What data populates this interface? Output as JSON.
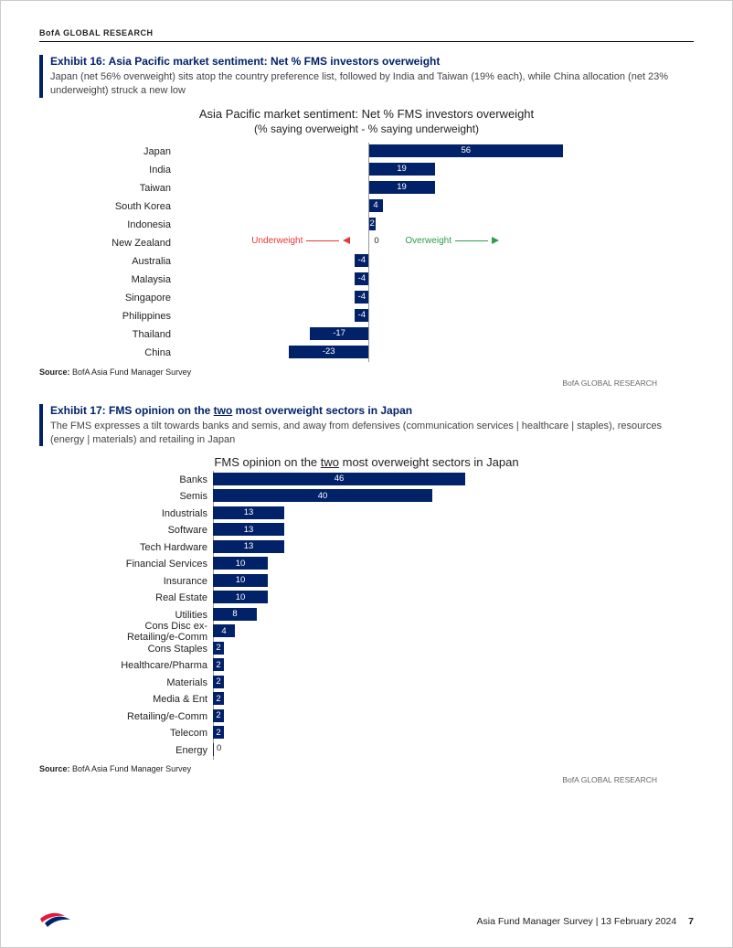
{
  "header": "BofA GLOBAL RESEARCH",
  "attrib": "BofA GLOBAL RESEARCH",
  "source_label": "Source:",
  "source_text": "BofA Asia Fund Manager Survey",
  "exhibit16": {
    "title": "Exhibit 16: Asia Pacific market sentiment: Net % FMS investors overweight",
    "sub": "Japan (net 56% overweight) sits atop the country preference list, followed by India and Taiwan (19% each), while China allocation (net 23% underweight) struck a new low",
    "chart_title": "Asia Pacific market sentiment: Net % FMS investors overweight",
    "chart_subtitle": "(% saying overweight - % saying underweight)",
    "type": "bar-diverging",
    "bar_color": "#012169",
    "axis_color": "#999999",
    "text_color": "#222222",
    "label_in_color": "#ffffff",
    "underweight_color": "#e53935",
    "overweight_color": "#2e9e4a",
    "underweight_text": "Underweight",
    "overweight_text": "Overweight",
    "xlim": [
      -60,
      60
    ],
    "zero_pct": 40,
    "scale": 3.8,
    "rows": [
      {
        "label": "Japan",
        "value": 56
      },
      {
        "label": "India",
        "value": 19
      },
      {
        "label": "Taiwan",
        "value": 19
      },
      {
        "label": "South Korea",
        "value": 4
      },
      {
        "label": "Indonesia",
        "value": 2
      },
      {
        "label": "New Zealand",
        "value": 0
      },
      {
        "label": "Australia",
        "value": -4
      },
      {
        "label": "Malaysia",
        "value": -4
      },
      {
        "label": "Singapore",
        "value": -4
      },
      {
        "label": "Philippines",
        "value": -4
      },
      {
        "label": "Thailand",
        "value": -17
      },
      {
        "label": "China",
        "value": -23
      }
    ]
  },
  "exhibit17": {
    "title_pre": "Exhibit 17: FMS opinion on the ",
    "title_u": "two",
    "title_post": " most overweight sectors in Japan",
    "sub": "The FMS expresses a tilt towards banks and semis, and away from defensives (communication services | healthcare | staples), resources (energy | materials) and retailing in Japan",
    "chart_title_pre": "FMS opinion on the ",
    "chart_title_u": "two",
    "chart_title_post": " most overweight sectors in Japan",
    "type": "bar",
    "bar_color": "#012169",
    "label_in_color": "#ffffff",
    "text_color": "#222222",
    "xlim": [
      0,
      50
    ],
    "scale": 6.0,
    "rows": [
      {
        "label": "Banks",
        "value": 46
      },
      {
        "label": "Semis",
        "value": 40
      },
      {
        "label": "Industrials",
        "value": 13
      },
      {
        "label": "Software",
        "value": 13
      },
      {
        "label": "Tech Hardware",
        "value": 13
      },
      {
        "label": "Financial Services",
        "value": 10
      },
      {
        "label": "Insurance",
        "value": 10
      },
      {
        "label": "Real Estate",
        "value": 10
      },
      {
        "label": "Utilities",
        "value": 8
      },
      {
        "label": "Cons Disc ex-Retailing/e-Comm",
        "value": 4
      },
      {
        "label": "Cons Staples",
        "value": 2
      },
      {
        "label": "Healthcare/Pharma",
        "value": 2
      },
      {
        "label": "Materials",
        "value": 2
      },
      {
        "label": "Media & Ent",
        "value": 2
      },
      {
        "label": "Retailing/e-Comm",
        "value": 2
      },
      {
        "label": "Telecom",
        "value": 2
      },
      {
        "label": "Energy",
        "value": 0
      }
    ]
  },
  "footer": {
    "doc": "Asia Fund Manager Survey | 13 February 2024",
    "page": "7",
    "logo_red": "#e31837",
    "logo_blue": "#012169"
  }
}
